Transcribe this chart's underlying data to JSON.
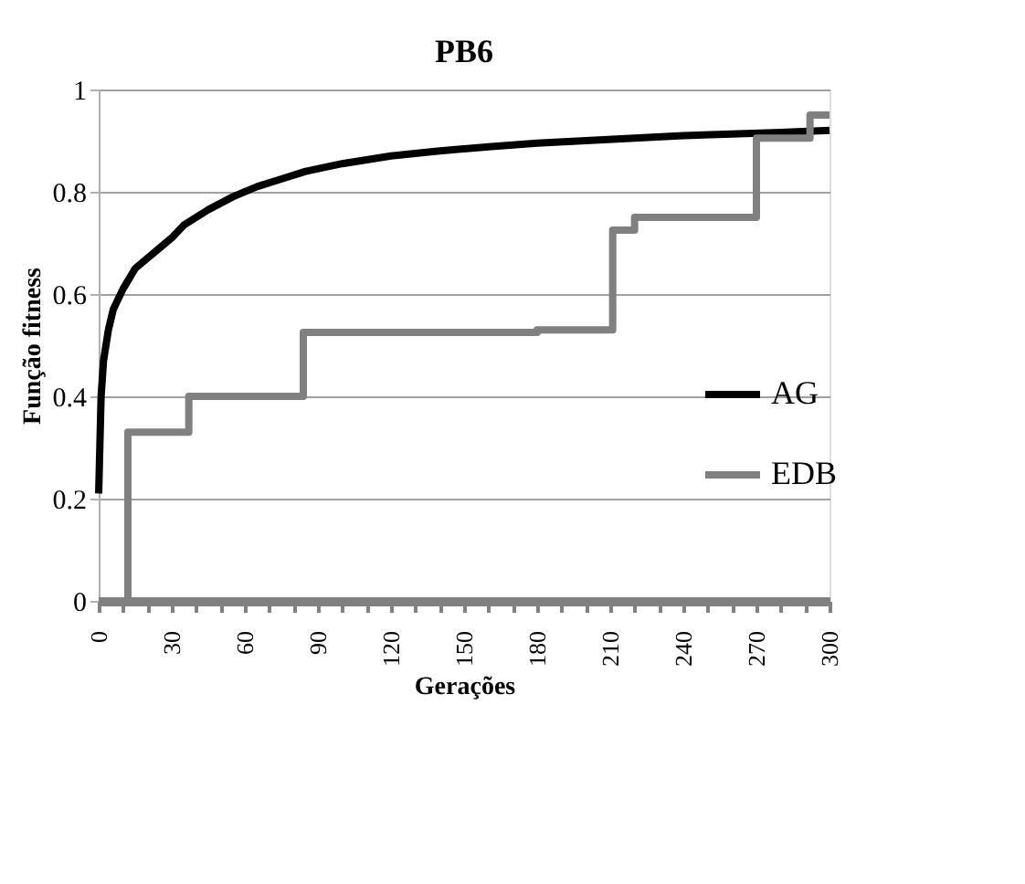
{
  "chart_data": {
    "type": "line",
    "title": "PB6",
    "xlabel": "Gerações",
    "ylabel": "Função fitness",
    "xlim": [
      0,
      300
    ],
    "ylim": [
      0,
      1
    ],
    "xticks": [
      0,
      {
        "value": 10,
        "label": null
      },
      {
        "value": 20,
        "label": null
      },
      30,
      {
        "value": 40,
        "label": null
      },
      {
        "value": 50,
        "label": null
      },
      60,
      {
        "value": 70,
        "label": null
      },
      {
        "value": 80,
        "label": null
      },
      90,
      {
        "value": 100,
        "label": null
      },
      {
        "value": 110,
        "label": null
      },
      120,
      {
        "value": 130,
        "label": null
      },
      {
        "value": 140,
        "label": null
      },
      150,
      {
        "value": 160,
        "label": null
      },
      {
        "value": 170,
        "label": null
      },
      180,
      {
        "value": 190,
        "label": null
      },
      {
        "value": 200,
        "label": null
      },
      210,
      {
        "value": 220,
        "label": null
      },
      {
        "value": 230,
        "label": null
      },
      240,
      {
        "value": 250,
        "label": null
      },
      {
        "value": 260,
        "label": null
      },
      270,
      {
        "value": 280,
        "label": null
      },
      {
        "value": 290,
        "label": null
      },
      300
    ],
    "yticks": [
      0,
      0.2,
      0.4,
      0.6,
      0.8,
      1
    ],
    "grid": "y",
    "legend": "right",
    "marker": "none",
    "line_style": "solid",
    "series": [
      {
        "name": "AG",
        "color": "#000000",
        "type": "line",
        "x": [
          0,
          1,
          2,
          4,
          6,
          10,
          15,
          20,
          25,
          30,
          35,
          45,
          55,
          65,
          75,
          85,
          100,
          120,
          140,
          160,
          180,
          200,
          220,
          240,
          260,
          280,
          300
        ],
        "values": [
          0.21,
          0.4,
          0.47,
          0.53,
          0.57,
          0.61,
          0.65,
          0.67,
          0.69,
          0.71,
          0.735,
          0.765,
          0.79,
          0.81,
          0.825,
          0.84,
          0.855,
          0.87,
          0.88,
          0.888,
          0.895,
          0.9,
          0.905,
          0.91,
          0.913,
          0.916,
          0.92
        ]
      },
      {
        "name": "EDB",
        "color": "#808080",
        "type": "step",
        "x": [
          0,
          12,
          37,
          84,
          180,
          211,
          220,
          270,
          292,
          300
        ],
        "values": [
          0,
          0.33,
          0.4,
          0.525,
          0.53,
          0.725,
          0.75,
          0.905,
          0.95,
          0.95
        ]
      }
    ]
  }
}
